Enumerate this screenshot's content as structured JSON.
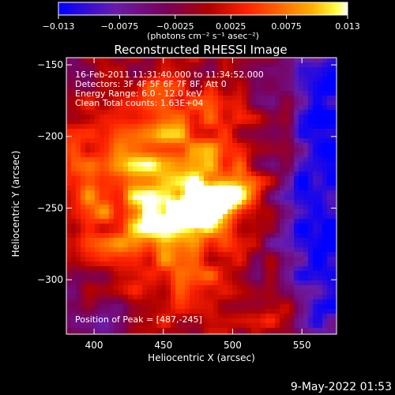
{
  "chart_data": {
    "type": "heatmap",
    "title": "Reconstructed RHESSI Image",
    "xlabel": "Heliocentric X (arcsec)",
    "ylabel": "Heliocentric Y (arcsec)",
    "xlim": [
      380,
      575
    ],
    "ylim": [
      -338,
      -145
    ],
    "x_ticks": [
      400,
      450,
      500,
      550
    ],
    "y_ticks": [
      -150,
      -200,
      -250,
      -300
    ],
    "x_tick_labels": [
      "400",
      "450",
      "500",
      "550"
    ],
    "y_tick_labels": [
      "−150",
      "−200",
      "−250",
      "−300"
    ],
    "colorbar": {
      "range": [
        -0.013,
        0.013
      ],
      "ticks": [
        -0.013,
        -0.0075,
        -0.0025,
        0.0025,
        0.0075,
        0.013
      ],
      "tick_labels": [
        "−0.013",
        "−0.0075",
        "−0.0025",
        "0.0025",
        "0.0075",
        "0.013"
      ],
      "units_text": "(photons cm⁻² s⁻¹ asec⁻²)"
    },
    "info_lines": [
      "16-Feb-2011 11:31:40.000 to 11:34:52.000",
      "Detectors: 3F 4F 5F 6F 7F 8F, Att 0",
      "Energy Range: 6.0 - 12.0 keV",
      "Clean    Total counts: 1.63E+04"
    ],
    "peak_label": "Position of Peak = [487,-245]",
    "peak_position": [
      487,
      -245
    ],
    "grid": false,
    "colormap": [
      "#0000ff",
      "#6a1ca8",
      "#7a0055",
      "#b00000",
      "#ff2200",
      "#ff6a00",
      "#ffb000",
      "#ffff40",
      "#ffffff"
    ]
  },
  "footer_date": "9-May-2022 01:53"
}
